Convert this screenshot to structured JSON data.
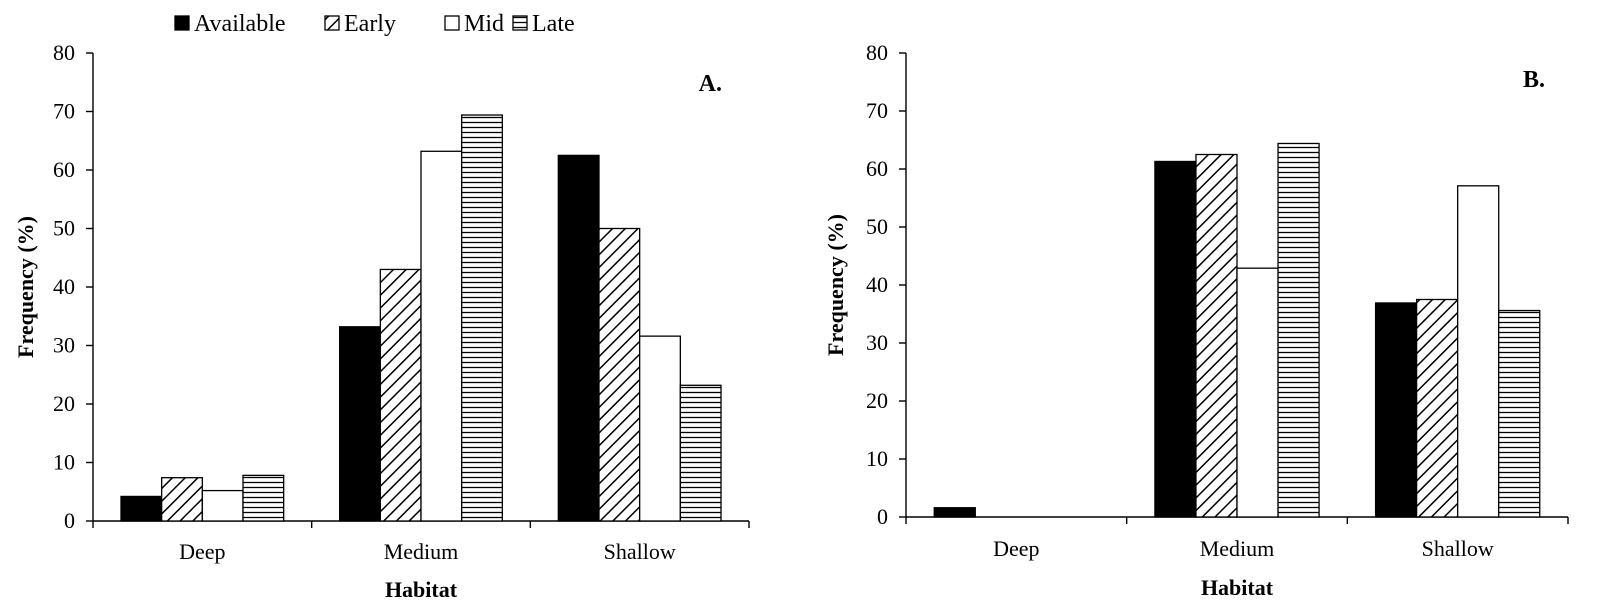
{
  "legend": {
    "items": [
      {
        "label": "Available",
        "pattern": "solid"
      },
      {
        "label": "Early",
        "pattern": "diagonal"
      },
      {
        "label": "Mid",
        "pattern": "empty"
      },
      {
        "label": "Late",
        "pattern": "horizontal"
      }
    ]
  },
  "colors": {
    "ink": "#000000",
    "background": "#ffffff"
  },
  "chart_data": [
    {
      "type": "bar",
      "panel_label": "A.",
      "categories": [
        "Deep",
        "Medium",
        "Shallow"
      ],
      "series": [
        {
          "name": "Available",
          "values": [
            4.2,
            33.2,
            62.5
          ]
        },
        {
          "name": "Early",
          "values": [
            7.4,
            43.0,
            50.0
          ]
        },
        {
          "name": "Mid",
          "values": [
            5.2,
            63.2,
            31.6
          ]
        },
        {
          "name": "Late",
          "values": [
            7.8,
            69.4,
            23.2
          ]
        }
      ],
      "xlabel": "Habitat",
      "ylabel": "Frequency (%)",
      "ylim": [
        0,
        80
      ],
      "yticks": [
        "0",
        "10",
        "20",
        "30",
        "40",
        "50",
        "60",
        "70",
        "80"
      ],
      "grid": false
    },
    {
      "type": "bar",
      "panel_label": "B.",
      "categories": [
        "Deep",
        "Medium",
        "Shallow"
      ],
      "series": [
        {
          "name": "Available",
          "values": [
            1.6,
            61.3,
            36.9
          ]
        },
        {
          "name": "Early",
          "values": [
            0,
            62.5,
            37.5
          ]
        },
        {
          "name": "Mid",
          "values": [
            0,
            42.9,
            57.1
          ]
        },
        {
          "name": "Late",
          "values": [
            0,
            64.4,
            35.6
          ]
        }
      ],
      "xlabel": "Habitat",
      "ylabel": "Frequency (%)",
      "ylim": [
        0,
        80
      ],
      "yticks": [
        "0",
        "10",
        "20",
        "30",
        "40",
        "50",
        "60",
        "70",
        "80"
      ],
      "grid": false
    }
  ]
}
